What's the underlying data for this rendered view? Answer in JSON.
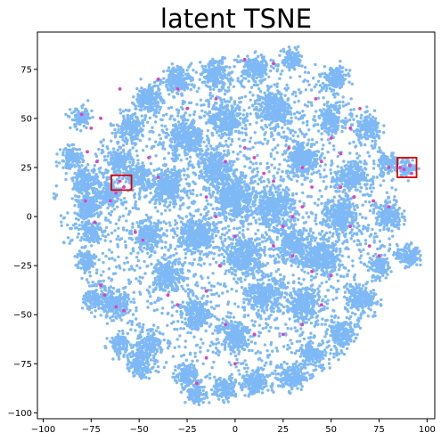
{
  "chart_data": {
    "type": "scatter",
    "title": "latent TSNE",
    "xlabel": "",
    "ylabel": "",
    "xlim": [
      -103,
      104
    ],
    "ylim": [
      -103,
      94
    ],
    "xticks": [
      -100,
      -75,
      -50,
      -25,
      0,
      25,
      50,
      75,
      100
    ],
    "yticks": [
      75,
      50,
      25,
      0,
      -25,
      -50,
      -75,
      -100
    ],
    "grid": false,
    "legend": "none",
    "colors": {
      "base_points": "#7eb9f6",
      "highlight_points": "#dd44bb",
      "annotation_boxes": "#dd0000"
    },
    "clusters": [
      {
        "cx": -80,
        "cy": 50,
        "r": 5
      },
      {
        "cx": -85,
        "cy": 30,
        "r": 5
      },
      {
        "cx": -78,
        "cy": 18,
        "r": 6
      },
      {
        "cx": -77,
        "cy": 5,
        "r": 6
      },
      {
        "cx": -75,
        "cy": -7,
        "r": 5
      },
      {
        "cx": -78,
        "cy": -22,
        "r": 5
      },
      {
        "cx": -72,
        "cy": -42,
        "r": 6
      },
      {
        "cx": -62,
        "cy": -45,
        "r": 6
      },
      {
        "cx": -60,
        "cy": -65,
        "r": 5
      },
      {
        "cx": -50,
        "cy": -75,
        "r": 6
      },
      {
        "cx": -45,
        "cy": -65,
        "r": 5
      },
      {
        "cx": -25,
        "cy": -80,
        "r": 5
      },
      {
        "cx": -20,
        "cy": -90,
        "r": 5
      },
      {
        "cx": -5,
        "cy": -88,
        "r": 5
      },
      {
        "cx": 10,
        "cy": -85,
        "r": 6
      },
      {
        "cx": 30,
        "cy": -82,
        "r": 6
      },
      {
        "cx": 40,
        "cy": -70,
        "r": 6
      },
      {
        "cx": 55,
        "cy": -60,
        "r": 6
      },
      {
        "cx": 65,
        "cy": -42,
        "r": 6
      },
      {
        "cx": 75,
        "cy": -25,
        "r": 5
      },
      {
        "cx": 90,
        "cy": -20,
        "r": 5
      },
      {
        "cx": 90,
        "cy": 25,
        "r": 4
      },
      {
        "cx": 80,
        "cy": 0,
        "r": 6
      },
      {
        "cx": 80,
        "cy": 27,
        "r": 5
      },
      {
        "cx": 70,
        "cy": 45,
        "r": 6
      },
      {
        "cx": 50,
        "cy": 50,
        "r": 6
      },
      {
        "cx": 52,
        "cy": 70,
        "r": 6
      },
      {
        "cx": 30,
        "cy": 80,
        "r": 5
      },
      {
        "cx": 10,
        "cy": 75,
        "r": 6
      },
      {
        "cx": -10,
        "cy": 72,
        "r": 6
      },
      {
        "cx": -30,
        "cy": 70,
        "r": 6
      },
      {
        "cx": -45,
        "cy": 60,
        "r": 6
      },
      {
        "cx": -55,
        "cy": 45,
        "r": 6
      },
      {
        "cx": -60,
        "cy": 28,
        "r": 6
      },
      {
        "cx": -65,
        "cy": 12,
        "r": 6
      },
      {
        "cx": -50,
        "cy": 20,
        "r": 6
      },
      {
        "cx": -45,
        "cy": -10,
        "r": 7
      },
      {
        "cx": -35,
        "cy": -30,
        "r": 7
      },
      {
        "cx": -20,
        "cy": -50,
        "r": 7
      },
      {
        "cx": 0,
        "cy": -60,
        "r": 7
      },
      {
        "cx": 15,
        "cy": -40,
        "r": 8
      },
      {
        "cx": 35,
        "cy": -45,
        "r": 8
      },
      {
        "cx": 45,
        "cy": -20,
        "r": 8
      },
      {
        "cx": 55,
        "cy": 0,
        "r": 8
      },
      {
        "cx": 60,
        "cy": 20,
        "r": 7
      },
      {
        "cx": 35,
        "cy": 30,
        "r": 8
      },
      {
        "cx": 20,
        "cy": 55,
        "r": 8
      },
      {
        "cx": -5,
        "cy": 50,
        "r": 8
      },
      {
        "cx": -25,
        "cy": 40,
        "r": 8
      },
      {
        "cx": -35,
        "cy": 15,
        "r": 8
      },
      {
        "cx": -20,
        "cy": -10,
        "r": 9
      },
      {
        "cx": 0,
        "cy": 10,
        "r": 10
      },
      {
        "cx": 20,
        "cy": 5,
        "r": 9
      },
      {
        "cx": 5,
        "cy": -20,
        "r": 9
      },
      {
        "cx": 30,
        "cy": -15,
        "r": 8
      },
      {
        "cx": -10,
        "cy": 25,
        "r": 8
      }
    ],
    "highlight_points": [
      [
        -80,
        52
      ],
      [
        -70,
        50
      ],
      [
        -75,
        45
      ],
      [
        -77,
        33
      ],
      [
        -72,
        28
      ],
      [
        -78,
        8
      ],
      [
        -73,
        -3
      ],
      [
        -60,
        18
      ],
      [
        -62,
        12
      ],
      [
        -58,
        15
      ],
      [
        -65,
        8
      ],
      [
        -52,
        -8
      ],
      [
        -48,
        -12
      ],
      [
        -70,
        -35
      ],
      [
        -68,
        -40
      ],
      [
        -62,
        -46
      ],
      [
        -58,
        -48
      ],
      [
        -35,
        -40
      ],
      [
        -30,
        -45
      ],
      [
        -15,
        -38
      ],
      [
        -8,
        -25
      ],
      [
        -5,
        28
      ],
      [
        10,
        30
      ],
      [
        15,
        22
      ],
      [
        20,
        18
      ],
      [
        5,
        35
      ],
      [
        28,
        35
      ],
      [
        35,
        25
      ],
      [
        45,
        28
      ],
      [
        50,
        40
      ],
      [
        55,
        32
      ],
      [
        40,
        15
      ],
      [
        35,
        5
      ],
      [
        30,
        0
      ],
      [
        25,
        -5
      ],
      [
        20,
        -15
      ],
      [
        30,
        -20
      ],
      [
        40,
        -28
      ],
      [
        50,
        -30
      ],
      [
        45,
        -45
      ],
      [
        35,
        -55
      ],
      [
        25,
        -60
      ],
      [
        10,
        -60
      ],
      [
        -5,
        -55
      ],
      [
        0,
        -75
      ],
      [
        -15,
        -72
      ],
      [
        -20,
        -85
      ],
      [
        20,
        78
      ],
      [
        5,
        80
      ],
      [
        -10,
        60
      ],
      [
        -30,
        65
      ],
      [
        -40,
        70
      ],
      [
        -60,
        65
      ],
      [
        -25,
        55
      ],
      [
        -45,
        30
      ],
      [
        -40,
        20
      ],
      [
        -15,
        10
      ],
      [
        -10,
        0
      ],
      [
        0,
        -10
      ],
      [
        60,
        -5
      ],
      [
        70,
        -15
      ],
      [
        75,
        -20
      ],
      [
        80,
        5
      ],
      [
        72,
        8
      ],
      [
        80,
        25
      ],
      [
        88,
        24
      ],
      [
        91,
        26
      ],
      [
        92,
        22
      ],
      [
        86,
        25
      ],
      [
        65,
        55
      ],
      [
        60,
        45
      ],
      [
        42,
        60
      ],
      [
        55,
        15
      ],
      [
        62,
        10
      ]
    ],
    "annotation_boxes": [
      {
        "x0": -64.5,
        "x1": -54,
        "y0": 13.5,
        "y1": 21
      },
      {
        "x0": 84.5,
        "x1": 94.5,
        "y0": 20,
        "y1": 30
      }
    ]
  }
}
